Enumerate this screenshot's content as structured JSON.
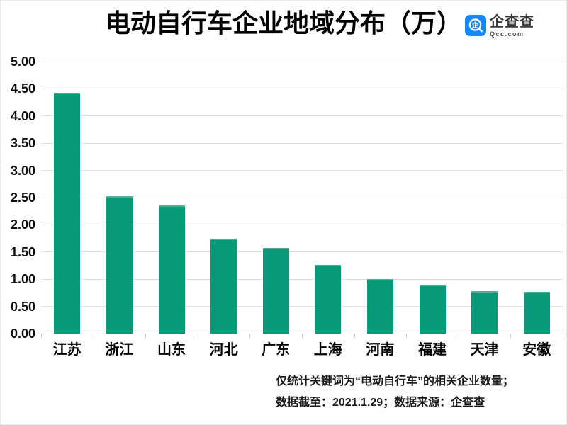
{
  "chart_data": {
    "type": "bar",
    "title": "电动自行车企业地域分布（万）",
    "categories": [
      "江苏",
      "浙江",
      "山东",
      "河北",
      "广东",
      "上海",
      "河南",
      "福建",
      "天津",
      "安徽"
    ],
    "values": [
      4.43,
      2.52,
      2.36,
      1.75,
      1.57,
      1.26,
      1.0,
      0.9,
      0.78,
      0.77
    ],
    "xlabel": "",
    "ylabel": "",
    "ylim": [
      0,
      5
    ],
    "ytick_step": 0.5,
    "ytick_labels": [
      "0.00",
      "0.50",
      "1.00",
      "1.50",
      "2.00",
      "2.50",
      "3.00",
      "3.50",
      "4.00",
      "4.50",
      "5.00"
    ],
    "grid": true,
    "legend": "none",
    "bar_color": "#089a78",
    "bar_top_highlight": "#4ab295",
    "gridline_color": "#e2e2e2",
    "axisline_color": "#cccccc",
    "label_color": "#000000"
  },
  "logo": {
    "name": "企查查",
    "domain": "Qcc.com",
    "brand_blue": "#1586fb",
    "icon": "qcc-magnifier-icon"
  },
  "footnote": {
    "line1": "仅统计关键词为“电动自行车”的相关企业数量；",
    "line2": "数据截至：2021.1.29；数据来源：企查查"
  }
}
